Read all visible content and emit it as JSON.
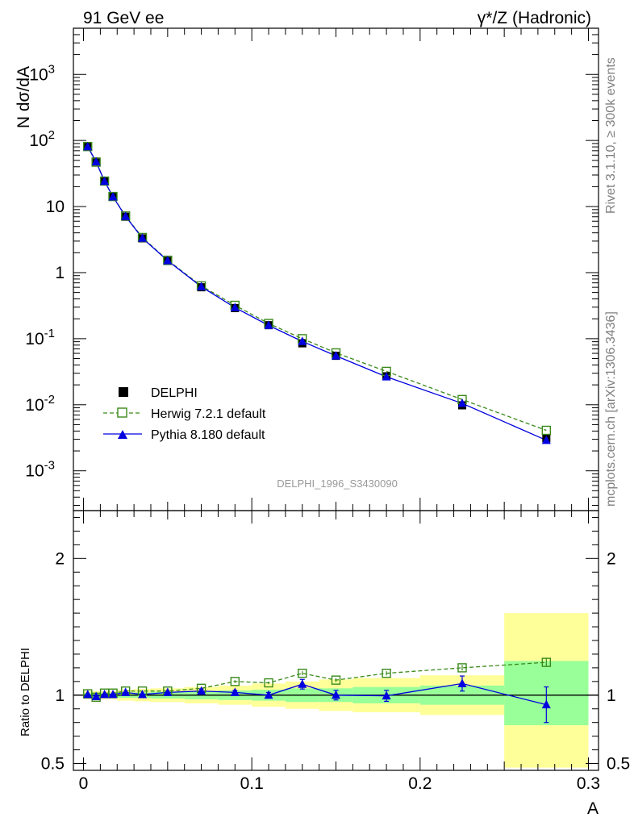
{
  "header": {
    "left": "91 GeV ee",
    "right": "γ*/Z (Hadronic)"
  },
  "side_labels": {
    "rivet": "Rivet 3.1.10, ≥ 300k events",
    "mcplots": "mcplots.cern.ch [arXiv:1306.3436]"
  },
  "analysis_id": "DELPHI_1996_S3430090",
  "chart_data": [
    {
      "type": "scatter",
      "panel": "main",
      "ylabel": "N dσ/dA",
      "yscale": "log",
      "ylim": [
        0.00025,
        5000
      ],
      "xlim": [
        -0.006,
        0.306
      ],
      "ytick_labels": [
        "10^-3",
        "10^-2",
        "10^-1",
        "1",
        "10",
        "10^2",
        "10^3"
      ],
      "legend_position": "bottom-left",
      "series": [
        {
          "name": "DELPHI",
          "style": "black filled squares",
          "x": [
            0.0025,
            0.0075,
            0.0125,
            0.0175,
            0.025,
            0.035,
            0.05,
            0.07,
            0.09,
            0.11,
            0.13,
            0.15,
            0.18,
            0.225,
            0.275
          ],
          "y": [
            80,
            48,
            24,
            14,
            7,
            3.3,
            1.5,
            0.6,
            0.29,
            0.16,
            0.085,
            0.055,
            0.027,
            0.0098,
            0.0031
          ]
        },
        {
          "name": "Herwig 7.2.1 default",
          "style": "green dashed, open squares",
          "x": [
            0.0025,
            0.0075,
            0.0125,
            0.0175,
            0.025,
            0.035,
            0.05,
            0.07,
            0.09,
            0.11,
            0.13,
            0.15,
            0.18,
            0.225,
            0.275
          ],
          "y": [
            81,
            47,
            24.3,
            14.2,
            7.2,
            3.4,
            1.54,
            0.63,
            0.32,
            0.17,
            0.1,
            0.061,
            0.032,
            0.012,
            0.0041
          ]
        },
        {
          "name": "Pythia 8.180 default",
          "style": "blue solid, filled triangles",
          "x": [
            0.0025,
            0.0075,
            0.0125,
            0.0175,
            0.025,
            0.035,
            0.05,
            0.07,
            0.09,
            0.11,
            0.13,
            0.15,
            0.18,
            0.225,
            0.275
          ],
          "y": [
            80.5,
            47.6,
            24.1,
            14.05,
            7.1,
            3.32,
            1.52,
            0.612,
            0.296,
            0.159,
            0.091,
            0.055,
            0.0265,
            0.0105,
            0.0029
          ]
        }
      ]
    },
    {
      "type": "line",
      "panel": "ratio",
      "ylabel": "Ratio to DELPHI",
      "xlabel": "A",
      "ylim": [
        0.45,
        2.35
      ],
      "xlim": [
        -0.006,
        0.306
      ],
      "yticks": [
        0.5,
        1,
        2
      ],
      "ytick_labels": [
        "0.5",
        "1",
        "2"
      ],
      "xticks": [
        0,
        0.1,
        0.2,
        0.3
      ],
      "xtick_labels": [
        "0",
        "0.1",
        "0.2",
        "0.3"
      ],
      "bands": {
        "bins": [
          [
            0.0,
            0.005
          ],
          [
            0.005,
            0.01
          ],
          [
            0.01,
            0.015
          ],
          [
            0.015,
            0.02
          ],
          [
            0.02,
            0.03
          ],
          [
            0.03,
            0.04
          ],
          [
            0.04,
            0.06
          ],
          [
            0.06,
            0.08
          ],
          [
            0.08,
            0.1
          ],
          [
            0.1,
            0.12
          ],
          [
            0.12,
            0.14
          ],
          [
            0.14,
            0.16
          ],
          [
            0.16,
            0.2
          ],
          [
            0.2,
            0.25
          ],
          [
            0.25,
            0.3
          ]
        ],
        "green": [
          [
            0.985,
            1.015
          ],
          [
            0.985,
            1.015
          ],
          [
            0.985,
            1.015
          ],
          [
            0.985,
            1.015
          ],
          [
            0.98,
            1.02
          ],
          [
            0.98,
            1.02
          ],
          [
            0.975,
            1.025
          ],
          [
            0.97,
            1.03
          ],
          [
            0.965,
            1.035
          ],
          [
            0.96,
            1.04
          ],
          [
            0.95,
            1.05
          ],
          [
            0.95,
            1.05
          ],
          [
            0.94,
            1.06
          ],
          [
            0.93,
            1.07
          ],
          [
            0.78,
            1.25
          ]
        ],
        "yellow": [
          [
            0.97,
            1.03
          ],
          [
            0.97,
            1.03
          ],
          [
            0.97,
            1.03
          ],
          [
            0.97,
            1.03
          ],
          [
            0.96,
            1.04
          ],
          [
            0.955,
            1.045
          ],
          [
            0.95,
            1.05
          ],
          [
            0.94,
            1.06
          ],
          [
            0.93,
            1.07
          ],
          [
            0.915,
            1.085
          ],
          [
            0.9,
            1.1
          ],
          [
            0.885,
            1.115
          ],
          [
            0.875,
            1.125
          ],
          [
            0.855,
            1.145
          ],
          [
            0.47,
            1.6
          ]
        ]
      },
      "series": [
        {
          "name": "Herwig 7.2.1 default",
          "x": [
            0.0025,
            0.0075,
            0.0125,
            0.0175,
            0.025,
            0.035,
            0.05,
            0.07,
            0.09,
            0.11,
            0.13,
            0.15,
            0.18,
            0.225,
            0.275
          ],
          "y": [
            1.01,
            0.985,
            1.015,
            1.015,
            1.03,
            1.03,
            1.03,
            1.05,
            1.1,
            1.09,
            1.16,
            1.11,
            1.16,
            1.2,
            1.24
          ],
          "err": [
            0.005,
            0.005,
            0.005,
            0.005,
            0.005,
            0.005,
            0.005,
            0.005,
            0.01,
            0.01,
            0.015,
            0.015,
            0.015,
            0.02,
            0.03
          ]
        },
        {
          "name": "Pythia 8.180 default",
          "x": [
            0.0025,
            0.0075,
            0.0125,
            0.0175,
            0.025,
            0.035,
            0.05,
            0.07,
            0.09,
            0.11,
            0.13,
            0.15,
            0.18,
            0.225,
            0.275
          ],
          "y": [
            1.005,
            0.99,
            1.005,
            1.005,
            1.02,
            1.005,
            1.02,
            1.03,
            1.02,
            1.0,
            1.08,
            1.0,
            0.995,
            1.085,
            0.93
          ],
          "err": [
            0.005,
            0.005,
            0.005,
            0.005,
            0.01,
            0.01,
            0.01,
            0.015,
            0.015,
            0.02,
            0.035,
            0.035,
            0.04,
            0.055,
            0.13
          ]
        }
      ]
    }
  ]
}
